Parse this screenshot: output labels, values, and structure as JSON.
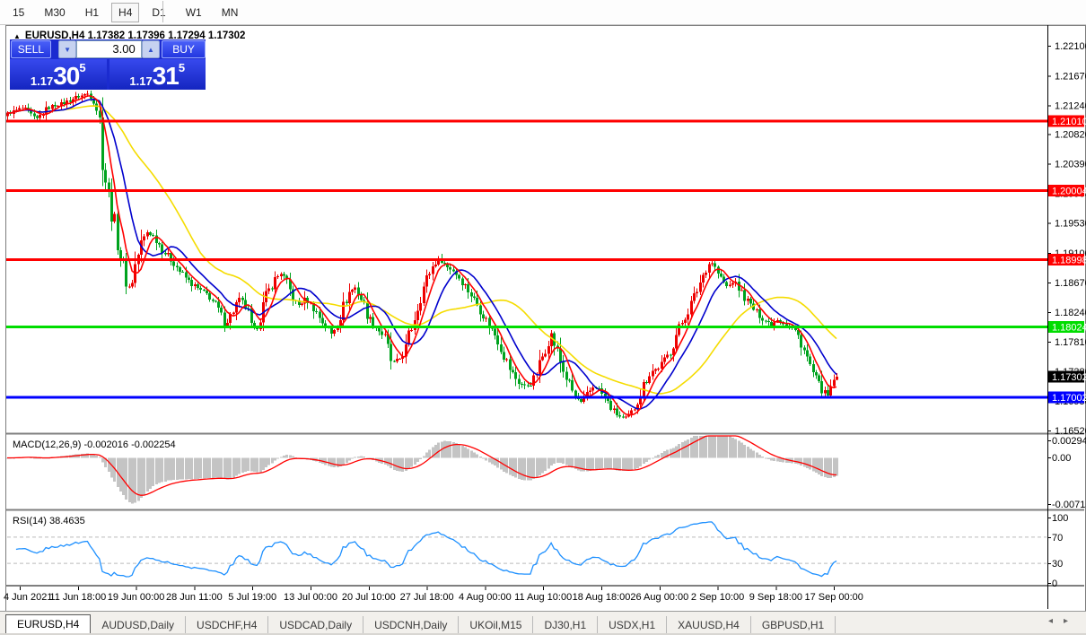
{
  "toolbar": {
    "timeframes": [
      "15",
      "M30",
      "H1",
      "H4",
      "D1",
      "W1",
      "MN"
    ],
    "active": "H4"
  },
  "chart_title": {
    "arrow": "▲",
    "text": "EURUSD,H4  1.17382 1.17396 1.17294 1.17302"
  },
  "trade_panel": {
    "sell_label": "SELL",
    "buy_label": "BUY",
    "volume": "3.00",
    "down_arrow": "▼",
    "up_arrow": "▲",
    "sell_price": {
      "prefix": "1.17",
      "big": "30",
      "sup": "5"
    },
    "buy_price": {
      "prefix": "1.17",
      "big": "31",
      "sup": "5"
    }
  },
  "indicators": {
    "macd_label": "MACD(12,26,9) -0.002016 -0.002254",
    "rsi_label": "RSI(14) 38.4635"
  },
  "chart_data": {
    "type": "candlestick",
    "symbol": "EURUSD",
    "timeframe": "H4",
    "ohlc_display": {
      "open": "1.17382",
      "high": "1.17396",
      "low": "1.17294",
      "close": "1.17302"
    },
    "current_price": {
      "value": "1.17302",
      "box_color": "#000000"
    },
    "candle_up_color": "#ee0000",
    "candle_down_color": "#00a31e",
    "y_axis_ticks": [
      "1.22100",
      "1.21670",
      "1.21240",
      "1.20820",
      "1.20390",
      "1.19960",
      "1.19530",
      "1.19100",
      "1.18670",
      "1.18240",
      "1.17810",
      "1.17380",
      "1.16950",
      "1.16520"
    ],
    "hlines": [
      {
        "price": 1.2101,
        "label": "1.21010",
        "color": "#ff0000"
      },
      {
        "price": 1.20004,
        "label": "1.20004",
        "color": "#ff0000"
      },
      {
        "price": 1.18998,
        "label": "1.18998",
        "color": "#ff0000"
      },
      {
        "price": 1.18024,
        "label": "1.18024",
        "color": "#00dd00"
      },
      {
        "price": 1.17002,
        "label": "1.17002",
        "color": "#0000ff"
      }
    ],
    "moving_averages": [
      {
        "period": 6,
        "color": "#ff0000"
      },
      {
        "period": 13,
        "color": "#0000cd"
      },
      {
        "period": 34,
        "color": "#f5dc00"
      }
    ],
    "price_anchors": [
      [
        8,
        1.2112
      ],
      [
        25,
        1.212
      ],
      [
        40,
        1.2103
      ],
      [
        55,
        1.2122
      ],
      [
        70,
        1.2127
      ],
      [
        85,
        1.2136
      ],
      [
        98,
        1.2141
      ],
      [
        106,
        1.213
      ],
      [
        111,
        1.2098
      ],
      [
        116,
        1.203
      ],
      [
        121,
        1.1986
      ],
      [
        127,
        1.1952
      ],
      [
        133,
        1.1912
      ],
      [
        140,
        1.187
      ],
      [
        145,
        1.1858
      ],
      [
        150,
        1.189
      ],
      [
        157,
        1.1923
      ],
      [
        164,
        1.1941
      ],
      [
        172,
        1.1932
      ],
      [
        182,
        1.1912
      ],
      [
        192,
        1.1898
      ],
      [
        202,
        1.188
      ],
      [
        212,
        1.1866
      ],
      [
        222,
        1.1856
      ],
      [
        232,
        1.1848
      ],
      [
        242,
        1.183
      ],
      [
        250,
        1.1806
      ],
      [
        258,
        1.1822
      ],
      [
        266,
        1.1843
      ],
      [
        274,
        1.1831
      ],
      [
        281,
        1.1794
      ],
      [
        288,
        1.1812
      ],
      [
        296,
        1.1846
      ],
      [
        305,
        1.187
      ],
      [
        313,
        1.1881
      ],
      [
        322,
        1.1857
      ],
      [
        331,
        1.1832
      ],
      [
        340,
        1.1844
      ],
      [
        350,
        1.1828
      ],
      [
        360,
        1.1808
      ],
      [
        369,
        1.1792
      ],
      [
        378,
        1.1816
      ],
      [
        388,
        1.1852
      ],
      [
        396,
        1.186
      ],
      [
        404,
        1.1838
      ],
      [
        412,
        1.1812
      ],
      [
        420,
        1.18
      ],
      [
        428,
        1.1788
      ],
      [
        436,
        1.175
      ],
      [
        444,
        1.1754
      ],
      [
        452,
        1.1772
      ],
      [
        460,
        1.181
      ],
      [
        468,
        1.1846
      ],
      [
        476,
        1.1876
      ],
      [
        484,
        1.1896
      ],
      [
        490,
        1.1902
      ],
      [
        497,
        1.189
      ],
      [
        505,
        1.1884
      ],
      [
        513,
        1.1872
      ],
      [
        521,
        1.1856
      ],
      [
        529,
        1.184
      ],
      [
        537,
        1.1822
      ],
      [
        545,
        1.1804
      ],
      [
        553,
        1.1788
      ],
      [
        561,
        1.1762
      ],
      [
        569,
        1.1738
      ],
      [
        577,
        1.1722
      ],
      [
        585,
        1.1716
      ],
      [
        593,
        1.1722
      ],
      [
        601,
        1.1748
      ],
      [
        609,
        1.1778
      ],
      [
        614,
        1.1792
      ],
      [
        620,
        1.1768
      ],
      [
        627,
        1.174
      ],
      [
        634,
        1.1718
      ],
      [
        641,
        1.17
      ],
      [
        648,
        1.1692
      ],
      [
        655,
        1.1706
      ],
      [
        662,
        1.1718
      ],
      [
        669,
        1.1708
      ],
      [
        676,
        1.1694
      ],
      [
        683,
        1.168
      ],
      [
        690,
        1.1672
      ],
      [
        697,
        1.167
      ],
      [
        704,
        1.1678
      ],
      [
        711,
        1.17
      ],
      [
        718,
        1.1722
      ],
      [
        725,
        1.1738
      ],
      [
        732,
        1.1742
      ],
      [
        739,
        1.1752
      ],
      [
        746,
        1.1766
      ],
      [
        753,
        1.179
      ],
      [
        760,
        1.181
      ],
      [
        767,
        1.1828
      ],
      [
        774,
        1.1848
      ],
      [
        781,
        1.1872
      ],
      [
        787,
        1.189
      ],
      [
        792,
        1.1898
      ],
      [
        797,
        1.1886
      ],
      [
        803,
        1.1872
      ],
      [
        810,
        1.186
      ],
      [
        817,
        1.1868
      ],
      [
        824,
        1.1856
      ],
      [
        831,
        1.1842
      ],
      [
        838,
        1.183
      ],
      [
        845,
        1.182
      ],
      [
        852,
        1.1812
      ],
      [
        859,
        1.1806
      ],
      [
        866,
        1.1814
      ],
      [
        873,
        1.1808
      ],
      [
        880,
        1.1802
      ],
      [
        887,
        1.1794
      ],
      [
        893,
        1.1778
      ],
      [
        899,
        1.1756
      ],
      [
        905,
        1.1736
      ],
      [
        911,
        1.172
      ],
      [
        917,
        1.1708
      ],
      [
        922,
        1.1702
      ],
      [
        926,
        1.1718
      ],
      [
        930,
        1.17302
      ]
    ],
    "macd": {
      "params": [
        12,
        26,
        9
      ],
      "values_display": [
        "-0.002016",
        "-0.002254"
      ],
      "hist_color": "#c4c4c4",
      "signal_color": "#ff0000",
      "axis_labels": [
        "0.002947",
        "0.00",
        "-0.007153"
      ],
      "axis_values": [
        0.002947,
        0.0,
        -0.007153
      ]
    },
    "rsi": {
      "period": 14,
      "value_display": "38.4635",
      "color": "#1e90ff",
      "axis_labels": [
        "100",
        "70",
        "30",
        "0"
      ],
      "axis_values": [
        100,
        70,
        30,
        0
      ],
      "levels": [
        70,
        30
      ]
    },
    "x_axis_labels": [
      "4 Jun 2021",
      "11 Jun 18:00",
      "19 Jun 00:00",
      "28 Jun 11:00",
      "5 Jul 19:00",
      "13 Jul 00:00",
      "20 Jul 10:00",
      "27 Jul 18:00",
      "4 Aug 00:00",
      "11 Aug 10:00",
      "18 Aug 18:00",
      "26 Aug 00:00",
      "2 Sep 10:00",
      "9 Sep 18:00",
      "17 Sep 00:00"
    ]
  },
  "tabs": {
    "items": [
      "EURUSD,H4",
      "AUDUSD,Daily",
      "USDCHF,H4",
      "USDCAD,Daily",
      "USDCNH,Daily",
      "UKOil,M15",
      "DJ30,H1",
      "USDX,H1",
      "XAUUSD,H4",
      "GBPUSD,H1"
    ],
    "active": "EURUSD,H4",
    "left_arrow": "◂",
    "right_arrow": "▸"
  }
}
